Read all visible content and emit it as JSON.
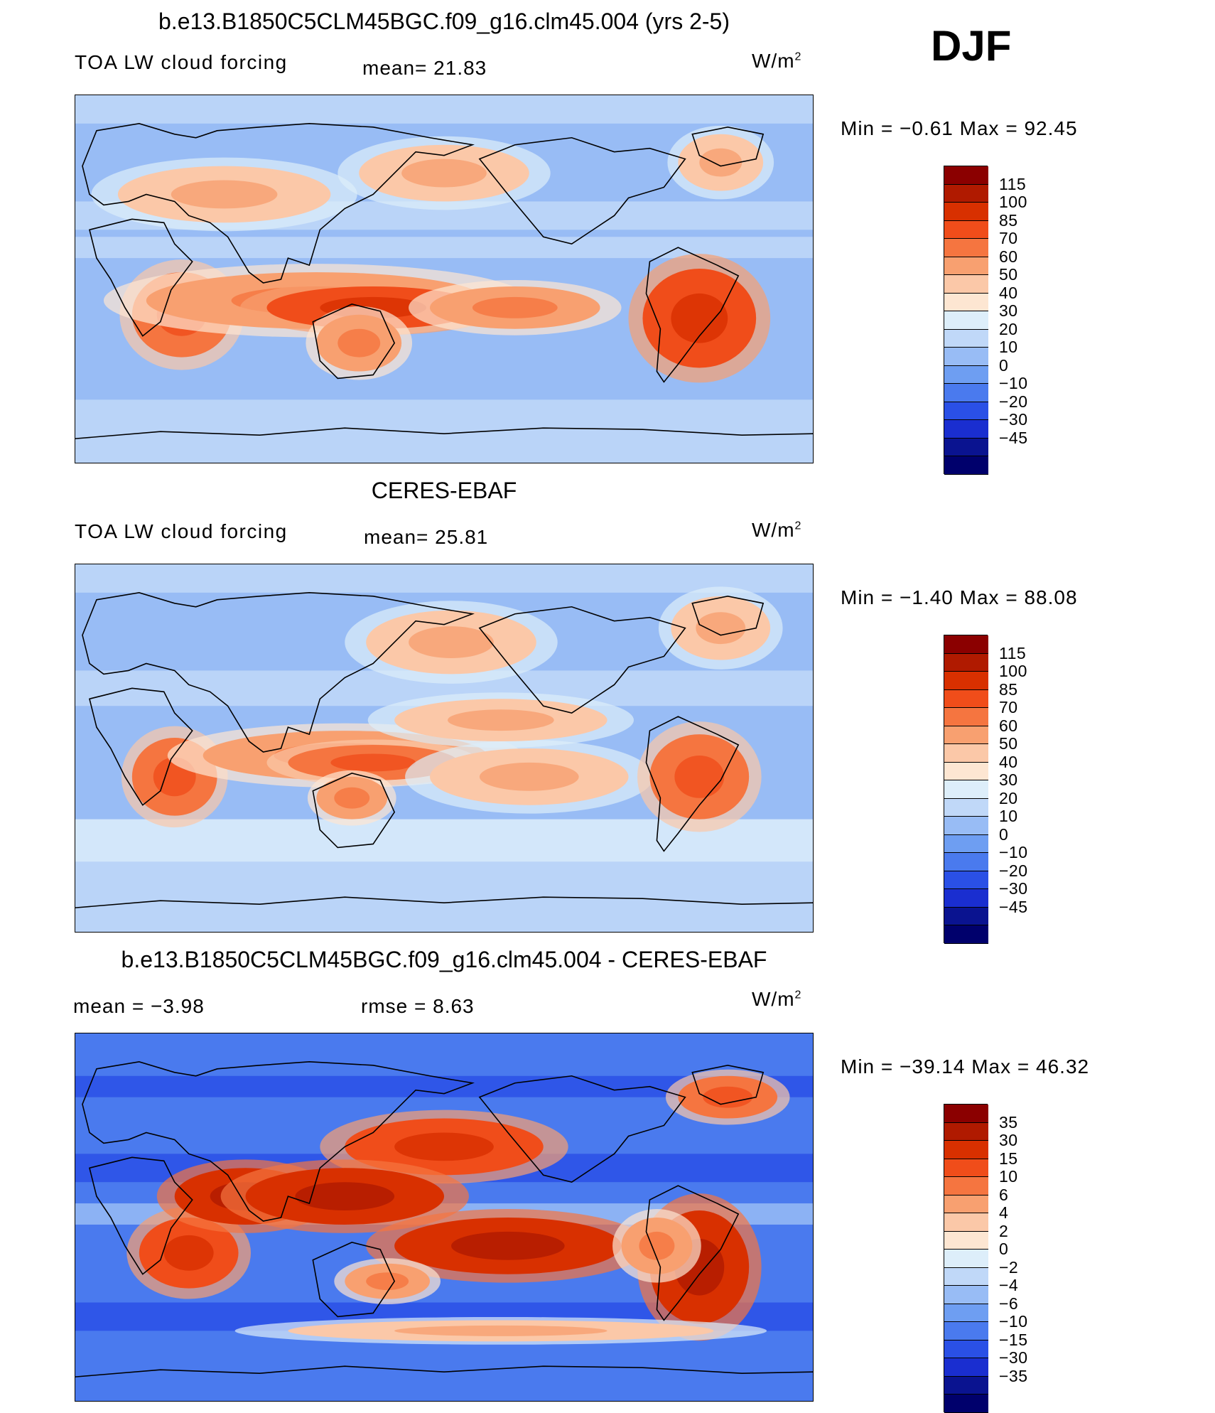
{
  "season": "DJF",
  "panels": [
    {
      "title": "b.e13.B1850C5CLM45BGC.f09_g16.clm45.004 (yrs 2-5)",
      "variable": "TOA LW cloud forcing",
      "stat_text": "mean=   21.83",
      "units": "W/m",
      "units_sup": "2",
      "minmax": "Min  =    −0.61  Max  =    92.45",
      "colorbar": {
        "labels": [
          "115",
          "100",
          "85",
          "70",
          "60",
          "50",
          "40",
          "30",
          "20",
          "10",
          "0",
          "−10",
          "−20",
          "−30",
          "−45"
        ],
        "colors": [
          "#8b0000",
          "#b01a00",
          "#d83000",
          "#f04d1a",
          "#f57540",
          "#f8a070",
          "#fbc8a8",
          "#fde6d2",
          "#ddeefa",
          "#c0d8f8",
          "#98bcf5",
          "#6e9ef2",
          "#4a7aee",
          "#2a50e6",
          "#1a2ed0",
          "#0a1390",
          "#00006c"
        ]
      },
      "map_style": "model"
    },
    {
      "title": "CERES-EBAF",
      "variable": "TOA LW cloud forcing",
      "stat_text": "mean=   25.81",
      "units": "W/m",
      "units_sup": "2",
      "minmax": "Min  =    −1.40  Max  =    88.08",
      "colorbar": {
        "labels": [
          "115",
          "100",
          "85",
          "70",
          "60",
          "50",
          "40",
          "30",
          "20",
          "10",
          "0",
          "−10",
          "−20",
          "−30",
          "−45"
        ],
        "colors": [
          "#8b0000",
          "#b01a00",
          "#d83000",
          "#f04d1a",
          "#f57540",
          "#f8a070",
          "#fbc8a8",
          "#fde6d2",
          "#ddeefa",
          "#c0d8f8",
          "#98bcf5",
          "#6e9ef2",
          "#4a7aee",
          "#2a50e6",
          "#1a2ed0",
          "#0a1390",
          "#00006c"
        ]
      },
      "map_style": "obs"
    },
    {
      "title": "b.e13.B1850C5CLM45BGC.f09_g16.clm45.004 - CERES-EBAF",
      "stat_text": "mean  =    −3.98",
      "stat2_text": "rmse  =     8.63",
      "units": "W/m",
      "units_sup": "2",
      "minmax": "Min  =  −39.14  Max  =    46.32",
      "colorbar": {
        "labels": [
          "35",
          "30",
          "15",
          "10",
          "6",
          "4",
          "2",
          "0",
          "−2",
          "−4",
          "−6",
          "−10",
          "−15",
          "−30",
          "−35"
        ],
        "colors": [
          "#8b0000",
          "#b01a00",
          "#d83000",
          "#f04d1a",
          "#f57540",
          "#f8a070",
          "#fbc8a8",
          "#fde6d2",
          "#ddeefa",
          "#c0d8f8",
          "#98bcf5",
          "#6e9ef2",
          "#4a7aee",
          "#2a50e6",
          "#1a2ed0",
          "#0a1390",
          "#00006c"
        ]
      },
      "map_style": "diff"
    }
  ]
}
